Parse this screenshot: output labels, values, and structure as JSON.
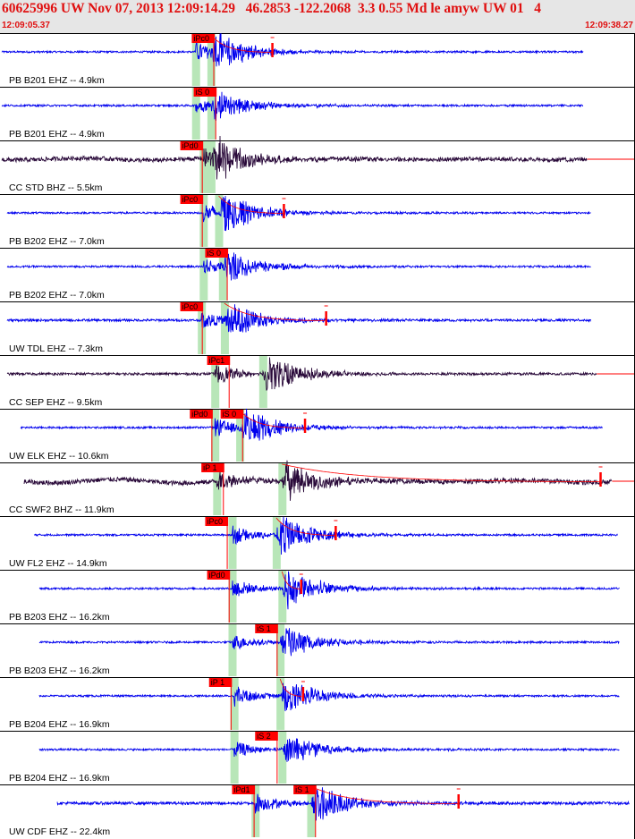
{
  "header": {
    "title": "60625996 UW Nov 07, 2013 12:09:14.29   46.2853 -122.2068  3.3 0.55 Md le amyw UW 01   4",
    "time_start": "12:09:05.37",
    "time_end": "12:09:38.27"
  },
  "colors": {
    "trace_blue": "#0000ee",
    "trace_dark": "#2a0a3a",
    "pick_red": "#ff0000",
    "window_green": "#b8e6b8",
    "header_bg": "#e6e6e6",
    "title_red": "#e01010"
  },
  "chart_data": {
    "type": "seismogram",
    "x_unit": "s",
    "x_start_time": "12:09:05.37",
    "x_end_time": "12:09:38.27",
    "xlim": [
      0.0,
      32.9
    ],
    "traces": [
      {
        "label": "PB B201 EHZ -- 4.9km",
        "color": "blue",
        "start": 0.0,
        "end": 30.3,
        "amp": 1.0,
        "noise": 0.04,
        "wave": 0.0,
        "picks": [
          {
            "label": "iPc0",
            "t": 9.9
          }
        ],
        "p": 10.1,
        "s": 10.9,
        "coda": 14.1,
        "hold": false
      },
      {
        "label": "PB B201 EHZ -- 4.9km",
        "color": "blue",
        "start": 0.0,
        "end": 30.3,
        "amp": 0.8,
        "noise": 0.04,
        "wave": 0.0,
        "picks": [
          {
            "label": "iS 0",
            "t": 10.0
          }
        ],
        "p": 10.1,
        "s": 10.9,
        "coda": null,
        "hold": false
      },
      {
        "label": "CC STD BHZ -- 5.5km",
        "color": "dark",
        "start": 0.0,
        "end": 30.5,
        "amp": 1.0,
        "noise": 0.09,
        "wave": 0.05,
        "picks": [
          {
            "label": "iPd0",
            "t": 9.3
          }
        ],
        "p": 10.5,
        "s": 10.9,
        "coda": null,
        "hold": true
      },
      {
        "label": "PB B202 EHZ -- 7.0km",
        "color": "blue",
        "start": 0.3,
        "end": 30.7,
        "amp": 1.0,
        "noise": 0.04,
        "wave": 0.0,
        "picks": [
          {
            "label": "iPc0",
            "t": 9.3
          }
        ],
        "p": 10.5,
        "s": 11.3,
        "coda": 14.7,
        "hold": false
      },
      {
        "label": "PB B202 EHZ -- 7.0km",
        "color": "blue",
        "start": 0.3,
        "end": 30.7,
        "amp": 0.8,
        "noise": 0.04,
        "wave": 0.0,
        "picks": [
          {
            "label": "iS 0",
            "t": 10.6
          }
        ],
        "p": 10.5,
        "s": 11.5,
        "coda": null,
        "hold": false
      },
      {
        "label": "UW TDL EHZ -- 7.3km",
        "color": "blue",
        "start": 0.3,
        "end": 30.7,
        "amp": 0.9,
        "noise": 0.05,
        "wave": 0.0,
        "picks": [
          {
            "label": "iPc0",
            "t": 9.3
          }
        ],
        "p": 10.4,
        "s": 11.6,
        "coda": 16.9,
        "hold": false
      },
      {
        "label": "CC SEP EHZ -- 9.5km",
        "color": "dark",
        "start": 0.3,
        "end": 31.0,
        "amp": 1.0,
        "noise": 0.05,
        "wave": 0.0,
        "picks": [
          {
            "label": "iPc1",
            "t": 10.7
          }
        ],
        "p": 11.1,
        "s": 13.6,
        "coda": null,
        "hold": true
      },
      {
        "label": "UW ELK EHZ -- 10.6km",
        "color": "blue",
        "start": 1.0,
        "end": 31.3,
        "amp": 1.0,
        "noise": 0.04,
        "wave": 0.0,
        "picks": [
          {
            "label": "iPd0",
            "t": 9.8
          },
          {
            "label": "iS 0",
            "t": 11.4
          }
        ],
        "p": 11.1,
        "s": 12.4,
        "coda": 15.8,
        "hold": false
      },
      {
        "label": "CC SWF2 BHZ -- 11.9km",
        "color": "dark",
        "start": 1.2,
        "end": 31.8,
        "amp": 1.0,
        "noise": 0.1,
        "wave": 0.08,
        "picks": [
          {
            "label": "iP 1",
            "t": 10.4
          }
        ],
        "p": 11.2,
        "s": 14.6,
        "coda": 31.2,
        "hold": true
      },
      {
        "label": "UW FL2 EHZ -- 14.9km",
        "color": "blue",
        "start": 1.7,
        "end": 32.1,
        "amp": 1.0,
        "noise": 0.04,
        "wave": 0.0,
        "picks": [
          {
            "label": "iPc0",
            "t": 10.6
          }
        ],
        "p": 12.0,
        "s": 14.3,
        "coda": 17.4,
        "hold": false
      },
      {
        "label": "PB B203 EHZ -- 16.2km",
        "color": "blue",
        "start": 2.0,
        "end": 32.2,
        "amp": 1.0,
        "noise": 0.04,
        "wave": 0.0,
        "picks": [
          {
            "label": "iPd0",
            "t": 10.7
          }
        ],
        "p": 12.0,
        "s": 14.6,
        "coda": 15.6,
        "hold": false
      },
      {
        "label": "PB B203 EHZ -- 16.2km",
        "color": "blue",
        "start": 2.0,
        "end": 32.2,
        "amp": 0.8,
        "noise": 0.04,
        "wave": 0.0,
        "picks": [
          {
            "label": "iS 1",
            "t": 13.2
          }
        ],
        "p": 12.0,
        "s": 14.5,
        "coda": null,
        "hold": false
      },
      {
        "label": "PB B204 EHZ -- 16.9km",
        "color": "blue",
        "start": 2.0,
        "end": 32.2,
        "amp": 1.0,
        "noise": 0.04,
        "wave": 0.0,
        "picks": [
          {
            "label": "iP 1",
            "t": 10.8
          }
        ],
        "p": 12.1,
        "s": 14.5,
        "coda": 15.7,
        "hold": false
      },
      {
        "label": "PB B204 EHZ -- 16.9km",
        "color": "blue",
        "start": 2.0,
        "end": 32.2,
        "amp": 0.8,
        "noise": 0.04,
        "wave": 0.0,
        "picks": [
          {
            "label": "iS 2",
            "t": 13.2
          }
        ],
        "p": 12.1,
        "s": 14.6,
        "coda": null,
        "hold": false
      },
      {
        "label": "UW CDF EHZ -- 22.4km",
        "color": "blue",
        "start": 2.9,
        "end": 32.7,
        "amp": 1.0,
        "noise": 0.06,
        "wave": 0.0,
        "picks": [
          {
            "label": "iPd1",
            "t": 12.0
          },
          {
            "label": "iS 1",
            "t": 15.2
          }
        ],
        "p": 13.2,
        "s": 16.1,
        "coda": 23.8,
        "hold": false
      }
    ]
  }
}
